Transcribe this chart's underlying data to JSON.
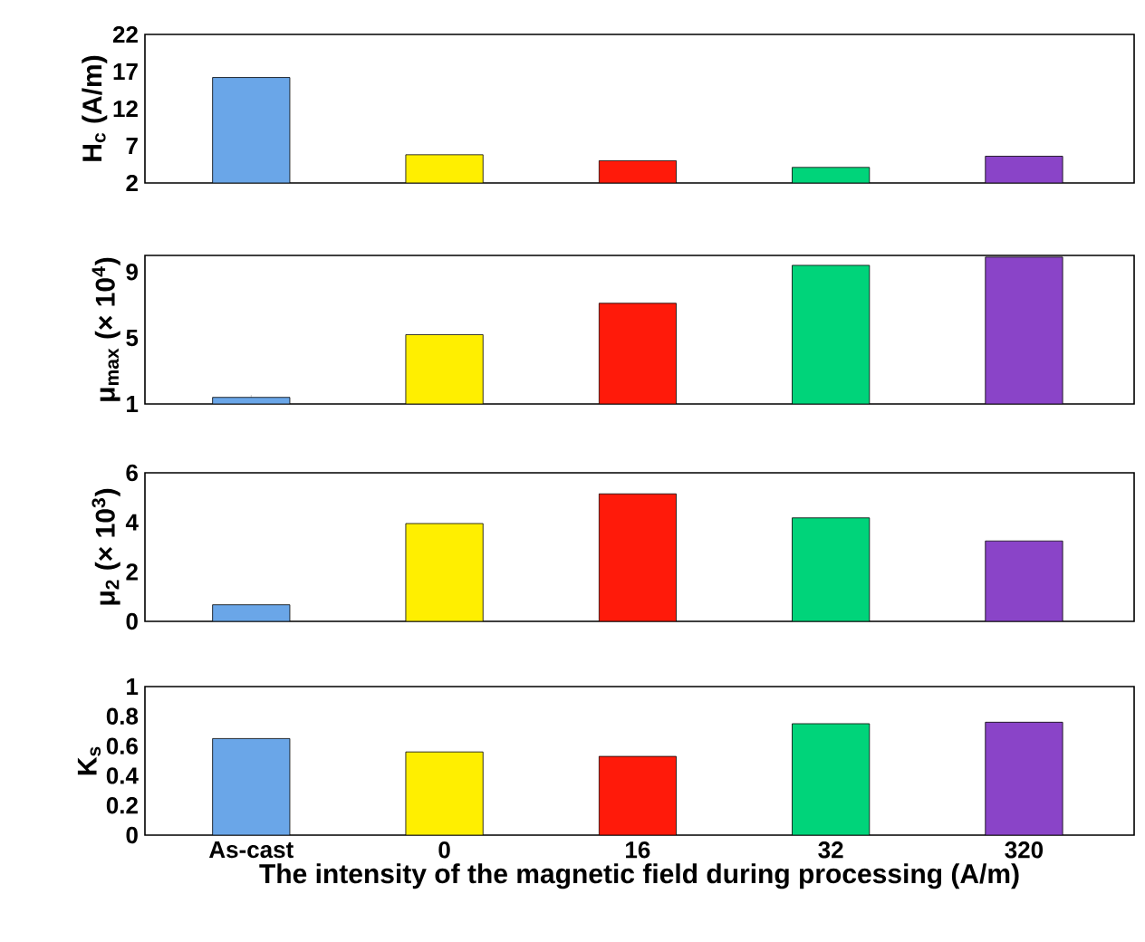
{
  "chart_data": [
    {
      "type": "bar",
      "ylabel": "H$_{c}$ (A/m)",
      "categories": [
        null,
        null,
        null,
        null,
        null
      ],
      "values": [
        16.2,
        5.8,
        5.0,
        4.1,
        5.6
      ],
      "colors": [
        "#6aa6e8",
        "#ffef00",
        "#ff1a0a",
        "#00d47a",
        "#8a44c8"
      ],
      "ylim": [
        2,
        22
      ],
      "yticks": [
        2,
        7,
        12,
        17,
        22
      ],
      "tick_labels": "y"
    },
    {
      "type": "bar",
      "ylabel": "μ$_{max}$ (× 10$^{4}$)",
      "categories": [
        null,
        null,
        null,
        null,
        null
      ],
      "values": [
        1.4,
        5.2,
        7.1,
        9.4,
        9.9
      ],
      "colors": [
        "#6aa6e8",
        "#ffef00",
        "#ff1a0a",
        "#00d47a",
        "#8a44c8"
      ],
      "ylim": [
        1,
        10
      ],
      "yticks": [
        1,
        5,
        9
      ],
      "tick_labels": "y"
    },
    {
      "type": "bar",
      "ylabel": "μ$_{2}$ (× 10$^{3}$)",
      "categories": [
        null,
        null,
        null,
        null,
        null
      ],
      "values": [
        0.67,
        3.95,
        5.15,
        4.18,
        3.25
      ],
      "colors": [
        "#6aa6e8",
        "#ffef00",
        "#ff1a0a",
        "#00d47a",
        "#8a44c8"
      ],
      "ylim": [
        0,
        6
      ],
      "yticks": [
        0,
        2,
        4,
        6
      ],
      "tick_labels": "y"
    },
    {
      "type": "bar",
      "ylabel": "K$_{s}$",
      "xlabel": "The intensity of the magnetic field during processing (A/m)",
      "categories": [
        "As-cast",
        "0",
        "16",
        "32",
        "320"
      ],
      "values": [
        0.65,
        0.56,
        0.53,
        0.75,
        0.76
      ],
      "colors": [
        "#6aa6e8",
        "#ffef00",
        "#ff1a0a",
        "#00d47a",
        "#8a44c8"
      ],
      "ylim": [
        0,
        1
      ],
      "yticks": [
        0,
        0.2,
        0.4,
        0.6,
        0.8,
        1
      ]
    }
  ]
}
